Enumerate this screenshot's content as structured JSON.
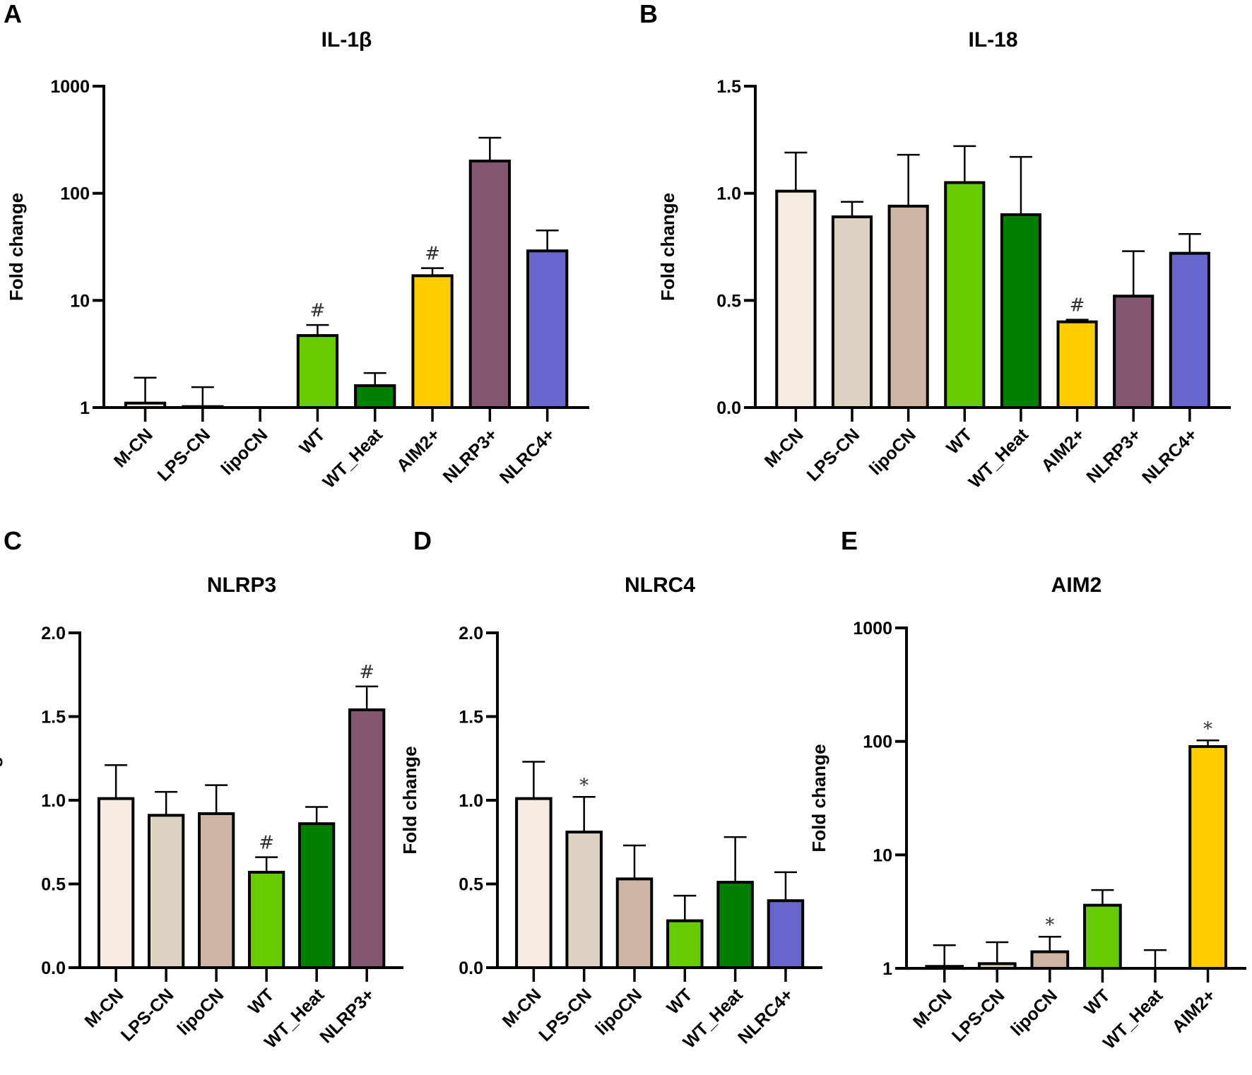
{
  "colors": {
    "M-CN": "#f5ebe1",
    "LPS-CN": "#ded3c3",
    "lipoCN": "#cdb4a3",
    "WT": "#66cc00",
    "WT_Heat": "#007f00",
    "AIM2+": "#ffcc00",
    "NLRP3+": "#85566f",
    "NLRC4+": "#6666cc"
  },
  "chart_data": [
    {
      "panel": "A",
      "type": "bar",
      "title": "IL-1β",
      "ylabel": "Fold change",
      "xlabel": "",
      "yscale": "log",
      "ylim": [
        1,
        1000
      ],
      "yticks": [
        "1",
        "10",
        "100",
        "1000"
      ],
      "ytick_values": [
        1,
        10,
        100,
        1000
      ],
      "categories": [
        "M-CN",
        "LPS-CN",
        "lipoCN",
        "WT",
        "WT_Heat",
        "AIM2+",
        "NLRP3+",
        "NLRC4+"
      ],
      "values": [
        1.1,
        1.02,
        1.0,
        4.7,
        1.6,
        17,
        200,
        29
      ],
      "error_upper": [
        1.9,
        1.55,
        null,
        5.9,
        2.1,
        20,
        330,
        45
      ],
      "annotations": [
        "",
        "",
        "",
        "#",
        "",
        "#",
        "",
        ""
      ]
    },
    {
      "panel": "B",
      "type": "bar",
      "title": "IL-18",
      "ylabel": "Fold change",
      "xlabel": "",
      "yscale": "linear",
      "ylim": [
        0,
        1.5
      ],
      "yticks": [
        "0.0",
        "0.5",
        "1.0",
        "1.5"
      ],
      "ytick_values": [
        0,
        0.5,
        1.0,
        1.5
      ],
      "categories": [
        "M-CN",
        "LPS-CN",
        "lipoCN",
        "WT",
        "WT_Heat",
        "AIM2+",
        "NLRP3+",
        "NLRC4+"
      ],
      "values": [
        1.01,
        0.89,
        0.94,
        1.05,
        0.9,
        0.4,
        0.52,
        0.72
      ],
      "error_upper": [
        1.19,
        0.96,
        1.18,
        1.22,
        1.17,
        0.41,
        0.73,
        0.81
      ],
      "annotations": [
        "",
        "",
        "",
        "",
        "",
        "#",
        "",
        ""
      ]
    },
    {
      "panel": "C",
      "type": "bar",
      "title": "NLRP3",
      "ylabel": "Fold change",
      "xlabel": "",
      "yscale": "linear",
      "ylim": [
        0,
        2.0
      ],
      "yticks": [
        "0.0",
        "0.5",
        "1.0",
        "1.5",
        "2.0"
      ],
      "ytick_values": [
        0,
        0.5,
        1.0,
        1.5,
        2.0
      ],
      "categories": [
        "M-CN",
        "LPS-CN",
        "lipoCN",
        "WT",
        "WT_Heat",
        "NLRP3+"
      ],
      "values": [
        1.01,
        0.91,
        0.92,
        0.57,
        0.86,
        1.54
      ],
      "error_upper": [
        1.21,
        1.05,
        1.09,
        0.66,
        0.96,
        1.68
      ],
      "annotations": [
        "",
        "",
        "",
        "#",
        "",
        "#"
      ]
    },
    {
      "panel": "D",
      "type": "bar",
      "title": "NLRC4",
      "ylabel": "Fold change",
      "xlabel": "",
      "yscale": "linear",
      "ylim": [
        0,
        2.0
      ],
      "yticks": [
        "0.0",
        "0.5",
        "1.0",
        "1.5",
        "2.0"
      ],
      "ytick_values": [
        0,
        0.5,
        1.0,
        1.5,
        2.0
      ],
      "categories": [
        "M-CN",
        "LPS-CN",
        "lipoCN",
        "WT",
        "WT_Heat",
        "NLRC4+"
      ],
      "values": [
        1.01,
        0.81,
        0.53,
        0.28,
        0.51,
        0.4
      ],
      "error_upper": [
        1.23,
        1.02,
        0.73,
        0.43,
        0.78,
        0.57
      ],
      "annotations": [
        "",
        "*",
        "",
        "",
        "",
        ""
      ]
    },
    {
      "panel": "E",
      "type": "bar",
      "title": "AIM2",
      "ylabel": "Fold change",
      "xlabel": "",
      "yscale": "log",
      "ylim": [
        1,
        1000
      ],
      "yticks": [
        "1",
        "10",
        "100",
        "1000"
      ],
      "ytick_values": [
        1,
        10,
        100,
        1000
      ],
      "categories": [
        "M-CN",
        "LPS-CN",
        "lipoCN",
        "WT",
        "WT_Heat",
        "AIM2+"
      ],
      "values": [
        1.04,
        1.1,
        1.4,
        3.6,
        1.0,
        90
      ],
      "error_upper": [
        1.6,
        1.7,
        1.9,
        4.9,
        1.45,
        102
      ],
      "annotations": [
        "",
        "",
        "*",
        "",
        "",
        "*"
      ]
    }
  ]
}
